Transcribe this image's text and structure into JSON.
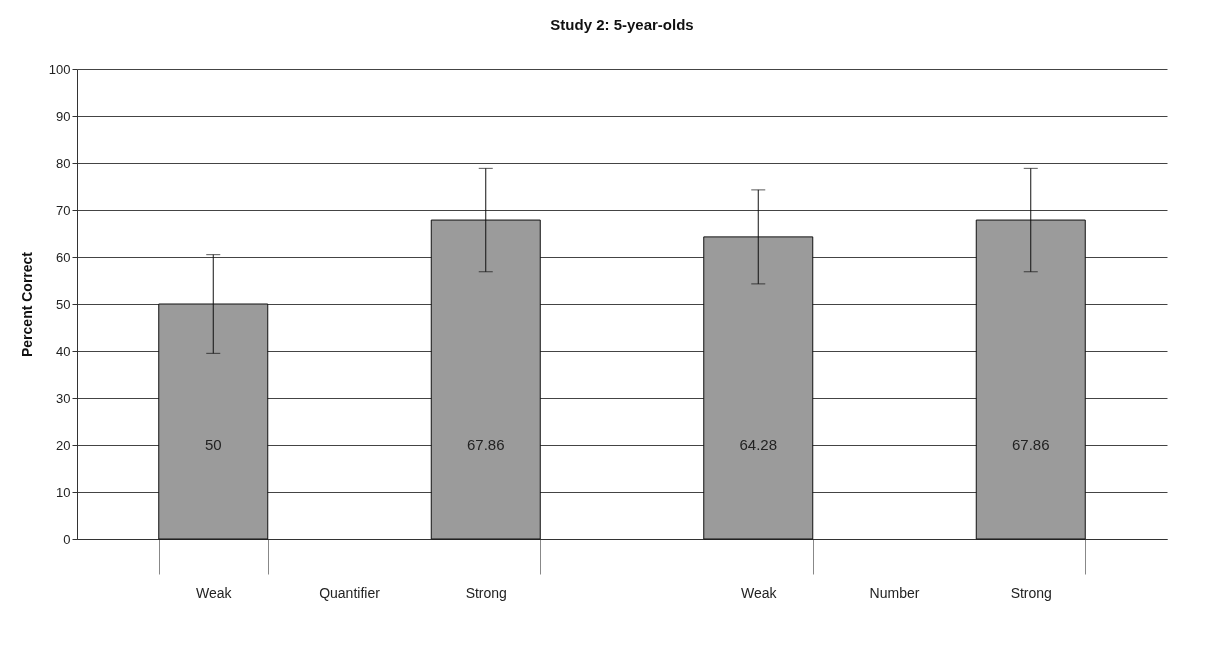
{
  "chart_data": {
    "type": "bar",
    "title": "Study 2:  5-year-olds",
    "ylabel": "Percent Correct",
    "categories": [
      "Weak",
      "Strong",
      "Weak",
      "Strong"
    ],
    "values": [
      50,
      67.86,
      64.28,
      67.86
    ],
    "errors": [
      10.5,
      11,
      10,
      11
    ],
    "color": "#9b9b9b",
    "data_labels": true,
    "annotations": [
      "Quantifier",
      "Number"
    ],
    "ylim": [
      0,
      100
    ],
    "yticks": [
      0,
      10,
      20,
      30,
      40,
      50,
      60,
      70,
      80,
      90,
      100
    ],
    "grid": "y"
  }
}
